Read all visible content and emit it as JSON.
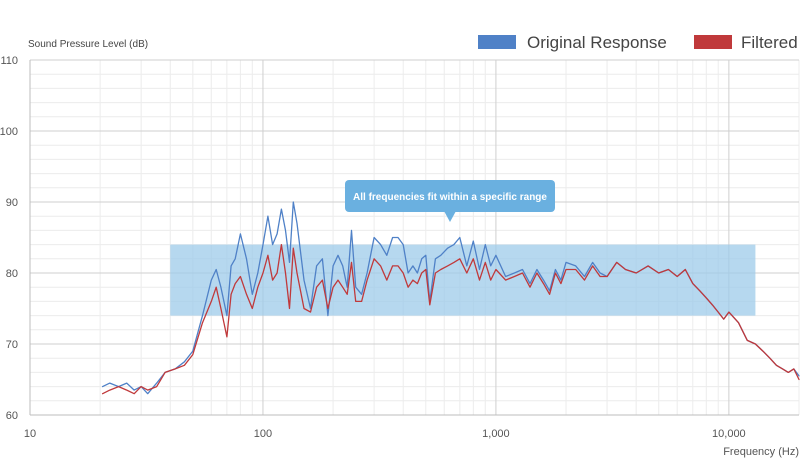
{
  "chart_data": {
    "type": "line",
    "title": "",
    "ylabel": "Sound Pressure Level (dB)",
    "xlabel": "Frequency (Hz)",
    "xscale": "log",
    "xlim": [
      10,
      20000
    ],
    "ylim": [
      60,
      110
    ],
    "xticks": [
      {
        "value": 10,
        "label": "10"
      },
      {
        "value": 100,
        "label": "100"
      },
      {
        "value": 1000,
        "label": "1,000"
      },
      {
        "value": 10000,
        "label": "10,000"
      }
    ],
    "yticks": [
      {
        "value": 60,
        "label": "60"
      },
      {
        "value": 70,
        "label": "70"
      },
      {
        "value": 80,
        "label": "80"
      },
      {
        "value": 90,
        "label": "90"
      },
      {
        "value": 100,
        "label": "100"
      },
      {
        "value": 110,
        "label": "110"
      }
    ],
    "grid": true,
    "legend": {
      "position": "top-right"
    },
    "series": [
      {
        "name": "Original Response",
        "color": "#4f81c7",
        "x": [
          20.5,
          22,
          24,
          26,
          28,
          30,
          32,
          35,
          38,
          42,
          46,
          50,
          55,
          60,
          63,
          66,
          70,
          73,
          76,
          80,
          85,
          90,
          95,
          100,
          105,
          110,
          115,
          120,
          125,
          130,
          135,
          140,
          150,
          160,
          170,
          180,
          190,
          200,
          210,
          220,
          230,
          240,
          250,
          265,
          280,
          300,
          320,
          340,
          360,
          380,
          400,
          420,
          440,
          460,
          480,
          500,
          520,
          550,
          580,
          620,
          660,
          700,
          750,
          800,
          850,
          900,
          950,
          1000,
          1100,
          1200,
          1300,
          1400,
          1500,
          1600,
          1700,
          1800,
          1900,
          2000,
          2200,
          2400,
          2600,
          2800,
          3000,
          3300,
          3600,
          4000,
          4500,
          5000,
          5500,
          6000,
          6500,
          7000,
          7500,
          8000,
          8500,
          9000,
          9500,
          10000,
          11000,
          12000,
          13000,
          14000,
          15000,
          16000,
          17000,
          18000,
          19000,
          20000
        ],
        "values": [
          64,
          64.5,
          64,
          64.5,
          63.5,
          64,
          63,
          64.5,
          66,
          66.5,
          67.5,
          69,
          74,
          79,
          80.5,
          78,
          74,
          81,
          82,
          85.5,
          82,
          77,
          80,
          84,
          88,
          84,
          85.5,
          89,
          86,
          81.5,
          90,
          87,
          79,
          75,
          81,
          82,
          74,
          81,
          82.5,
          81,
          78,
          86,
          78,
          77,
          80,
          85,
          84,
          82.5,
          85,
          85,
          84,
          80,
          81,
          80,
          82,
          82.5,
          76,
          82,
          82.5,
          83.5,
          84,
          85,
          81,
          84.5,
          80.5,
          84,
          81,
          82.5,
          79.5,
          80,
          80.5,
          78.5,
          80.5,
          79,
          77.5,
          80.5,
          79,
          81.5,
          81,
          79.5,
          81.5,
          80,
          79.5,
          81.5,
          80.5,
          80,
          81,
          80,
          80.5,
          79.5,
          80.5,
          78.5,
          77.5,
          76.5,
          75.5,
          74.5,
          73.5,
          74.5,
          73,
          70.5,
          70,
          69,
          68,
          67,
          66.5,
          66,
          66.5,
          65.5
        ]
      },
      {
        "name": "Filtered",
        "color": "#c0393b",
        "x": [
          20.5,
          22,
          24,
          26,
          28,
          30,
          32,
          35,
          38,
          42,
          46,
          50,
          55,
          60,
          63,
          66,
          70,
          73,
          76,
          80,
          85,
          90,
          95,
          100,
          105,
          110,
          115,
          120,
          125,
          130,
          135,
          140,
          150,
          160,
          170,
          180,
          190,
          200,
          210,
          220,
          230,
          240,
          250,
          265,
          280,
          300,
          320,
          340,
          360,
          380,
          400,
          420,
          440,
          460,
          480,
          500,
          520,
          550,
          580,
          620,
          660,
          700,
          750,
          800,
          850,
          900,
          950,
          1000,
          1100,
          1200,
          1300,
          1400,
          1500,
          1600,
          1700,
          1800,
          1900,
          2000,
          2200,
          2400,
          2600,
          2800,
          3000,
          3300,
          3600,
          4000,
          4500,
          5000,
          5500,
          6000,
          6500,
          7000,
          7500,
          8000,
          8500,
          9000,
          9500,
          10000,
          11000,
          12000,
          13000,
          14000,
          15000,
          16000,
          17000,
          18000,
          19000,
          20000
        ],
        "values": [
          63,
          63.5,
          64,
          63.5,
          63,
          64,
          63.5,
          64,
          66,
          66.5,
          67,
          68.5,
          73,
          76,
          78,
          75,
          71,
          77,
          78.5,
          79.5,
          77,
          75,
          78,
          80,
          82.5,
          79,
          80,
          84,
          80,
          75,
          83.5,
          80,
          75,
          74.5,
          78,
          79,
          75,
          78,
          79,
          78,
          77,
          81.5,
          76,
          76,
          79,
          82,
          81,
          79,
          81,
          81,
          80,
          78,
          79,
          78.5,
          80,
          80.5,
          75.5,
          80,
          80.5,
          81,
          81.5,
          82,
          80,
          82,
          79,
          81.5,
          79,
          80.5,
          79,
          79.5,
          80,
          78,
          80,
          78.5,
          77,
          80,
          78.5,
          80.5,
          80.5,
          79,
          81,
          79.5,
          79.5,
          81.5,
          80.5,
          80,
          81,
          80,
          80.5,
          79.5,
          80.5,
          78.5,
          77.5,
          76.5,
          75.5,
          74.5,
          73.5,
          74.5,
          73,
          70.5,
          70,
          69,
          68,
          67,
          66.5,
          66,
          66.5,
          65
        ]
      }
    ],
    "highlight_band": {
      "x_from": 40,
      "x_to": 13000,
      "y_from": 74,
      "y_to": 84,
      "color": "#9ecbe9"
    },
    "annotation": {
      "text": "All frequencies fit within a specific range",
      "x": 650,
      "y": 88,
      "color": "#6ab0e0"
    }
  }
}
